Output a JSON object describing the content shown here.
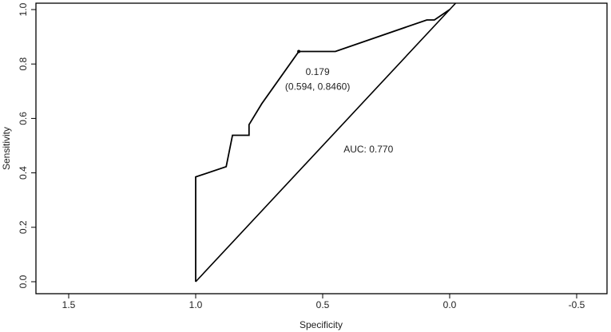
{
  "chart_data": {
    "type": "line",
    "title": "",
    "xlabel": "Specificity",
    "ylabel": "Sensitivity",
    "xlim": [
      1.6,
      -0.6
    ],
    "ylim": [
      0.0,
      1.0
    ],
    "x_ticks": [
      1.5,
      1.0,
      0.5,
      0.0,
      -0.5
    ],
    "x_tick_labels": [
      "1.5",
      "1.0",
      "0.5",
      "0.0",
      "-0.5"
    ],
    "y_ticks": [
      0.0,
      0.2,
      0.4,
      0.6,
      0.8,
      1.0
    ],
    "y_tick_labels": [
      "0.0",
      "0.2",
      "0.4",
      "0.6",
      "0.8",
      "1.0"
    ],
    "grid": false,
    "series": [
      {
        "values": [
          {
            "x": 1.0,
            "y": 0.0
          },
          {
            "x": 1.0,
            "y": 0.385
          },
          {
            "x": 0.88,
            "y": 0.423
          },
          {
            "x": 0.855,
            "y": 0.538
          },
          {
            "x": 0.79,
            "y": 0.538
          },
          {
            "x": 0.79,
            "y": 0.577
          },
          {
            "x": 0.74,
            "y": 0.654
          },
          {
            "x": 0.594,
            "y": 0.846
          },
          {
            "x": 0.45,
            "y": 0.846
          },
          {
            "x": 0.09,
            "y": 0.962
          },
          {
            "x": 0.06,
            "y": 0.962
          },
          {
            "x": 0.0,
            "y": 1.0
          }
        ]
      }
    ],
    "reference_line": [
      {
        "x": 1.0,
        "y": 0.0
      },
      {
        "x": 0.0,
        "y": 1.0
      }
    ],
    "annotations": [
      {
        "text": "0.179",
        "x": 0.52,
        "y": 0.76
      },
      {
        "text": "(0.594, 0.8460)",
        "x": 0.52,
        "y": 0.705
      },
      {
        "text": "AUC: 0.770",
        "x": 0.32,
        "y": 0.475
      }
    ],
    "highlight_point": {
      "x": 0.594,
      "y": 0.846
    }
  }
}
